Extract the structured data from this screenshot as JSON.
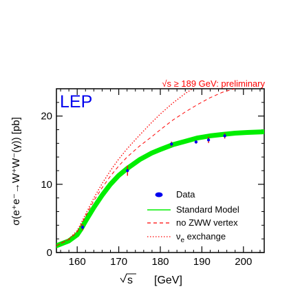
{
  "chart_data": {
    "type": "line",
    "xlabel_sqrt": "√s",
    "xlabel_unit": "[GeV]",
    "ylabel": "σ(e⁺e⁻→W⁺W⁻(γ))  [pb]",
    "xlim": [
      155,
      205
    ],
    "ylim": [
      0,
      24
    ],
    "x_ticks": [
      160,
      170,
      180,
      190,
      200
    ],
    "y_ticks": [
      0,
      10,
      20
    ],
    "experiment_label": "LEP",
    "annotation": "√s ≥ 189 GeV: preliminary",
    "grid": false,
    "legend_position": "bottom-right",
    "data_points": {
      "name": "Data",
      "x": [
        161.3,
        172.1,
        182.7,
        188.6,
        191.6,
        195.5
      ],
      "y": [
        3.7,
        12.0,
        15.9,
        16.2,
        16.5,
        17.1
      ],
      "yerr": [
        0.45,
        0.75,
        0.35,
        0.25,
        0.45,
        0.4
      ]
    },
    "series": [
      {
        "name": "Standard Model",
        "color": "#00ee00",
        "x": [
          155,
          158,
          160,
          161,
          162,
          164,
          166,
          168,
          170,
          172,
          175,
          178,
          180,
          183,
          186,
          189,
          192,
          195,
          198,
          201,
          205
        ],
        "values": [
          1.0,
          1.7,
          2.6,
          3.5,
          4.6,
          6.6,
          8.4,
          10.0,
          11.3,
          12.3,
          13.6,
          14.6,
          15.1,
          15.8,
          16.3,
          16.8,
          17.1,
          17.3,
          17.5,
          17.6,
          17.7
        ]
      },
      {
        "name": "no ZWW vertex",
        "color": "#ff0000",
        "x": [
          155,
          158,
          160,
          162,
          164,
          166,
          168,
          170,
          172,
          175,
          178,
          180,
          183,
          186,
          189,
          192,
          195,
          199
        ],
        "values": [
          1.0,
          1.9,
          3.0,
          5.3,
          7.6,
          9.5,
          11.2,
          12.7,
          14.0,
          15.6,
          17.0,
          18.0,
          19.4,
          20.6,
          21.7,
          22.7,
          23.5,
          24.2
        ]
      },
      {
        "name": "νe exchange",
        "color": "#ff0000",
        "x": [
          155,
          158,
          160,
          162,
          164,
          166,
          168,
          170,
          172,
          175,
          178,
          180,
          183,
          186,
          189,
          190
        ],
        "values": [
          1.0,
          2.0,
          3.2,
          5.6,
          8.0,
          10.1,
          12.0,
          13.7,
          15.2,
          17.2,
          19.1,
          20.3,
          21.9,
          23.3,
          24.5,
          24.8
        ]
      }
    ],
    "legend": [
      {
        "label": "Data",
        "style": "point",
        "color": "#0000ee"
      },
      {
        "label": "Standard Model",
        "style": "solid",
        "color": "#00ee00"
      },
      {
        "label": "no ZWW vertex",
        "style": "dashed",
        "color": "#ff0000"
      },
      {
        "label_main": "ν",
        "label_sub": "e",
        "label_rest": " exchange",
        "style": "dotted",
        "color": "#ff0000"
      }
    ],
    "colors": {
      "data": "#0000ee",
      "annotation": "#ff0000",
      "experiment": "#0000ee"
    }
  }
}
